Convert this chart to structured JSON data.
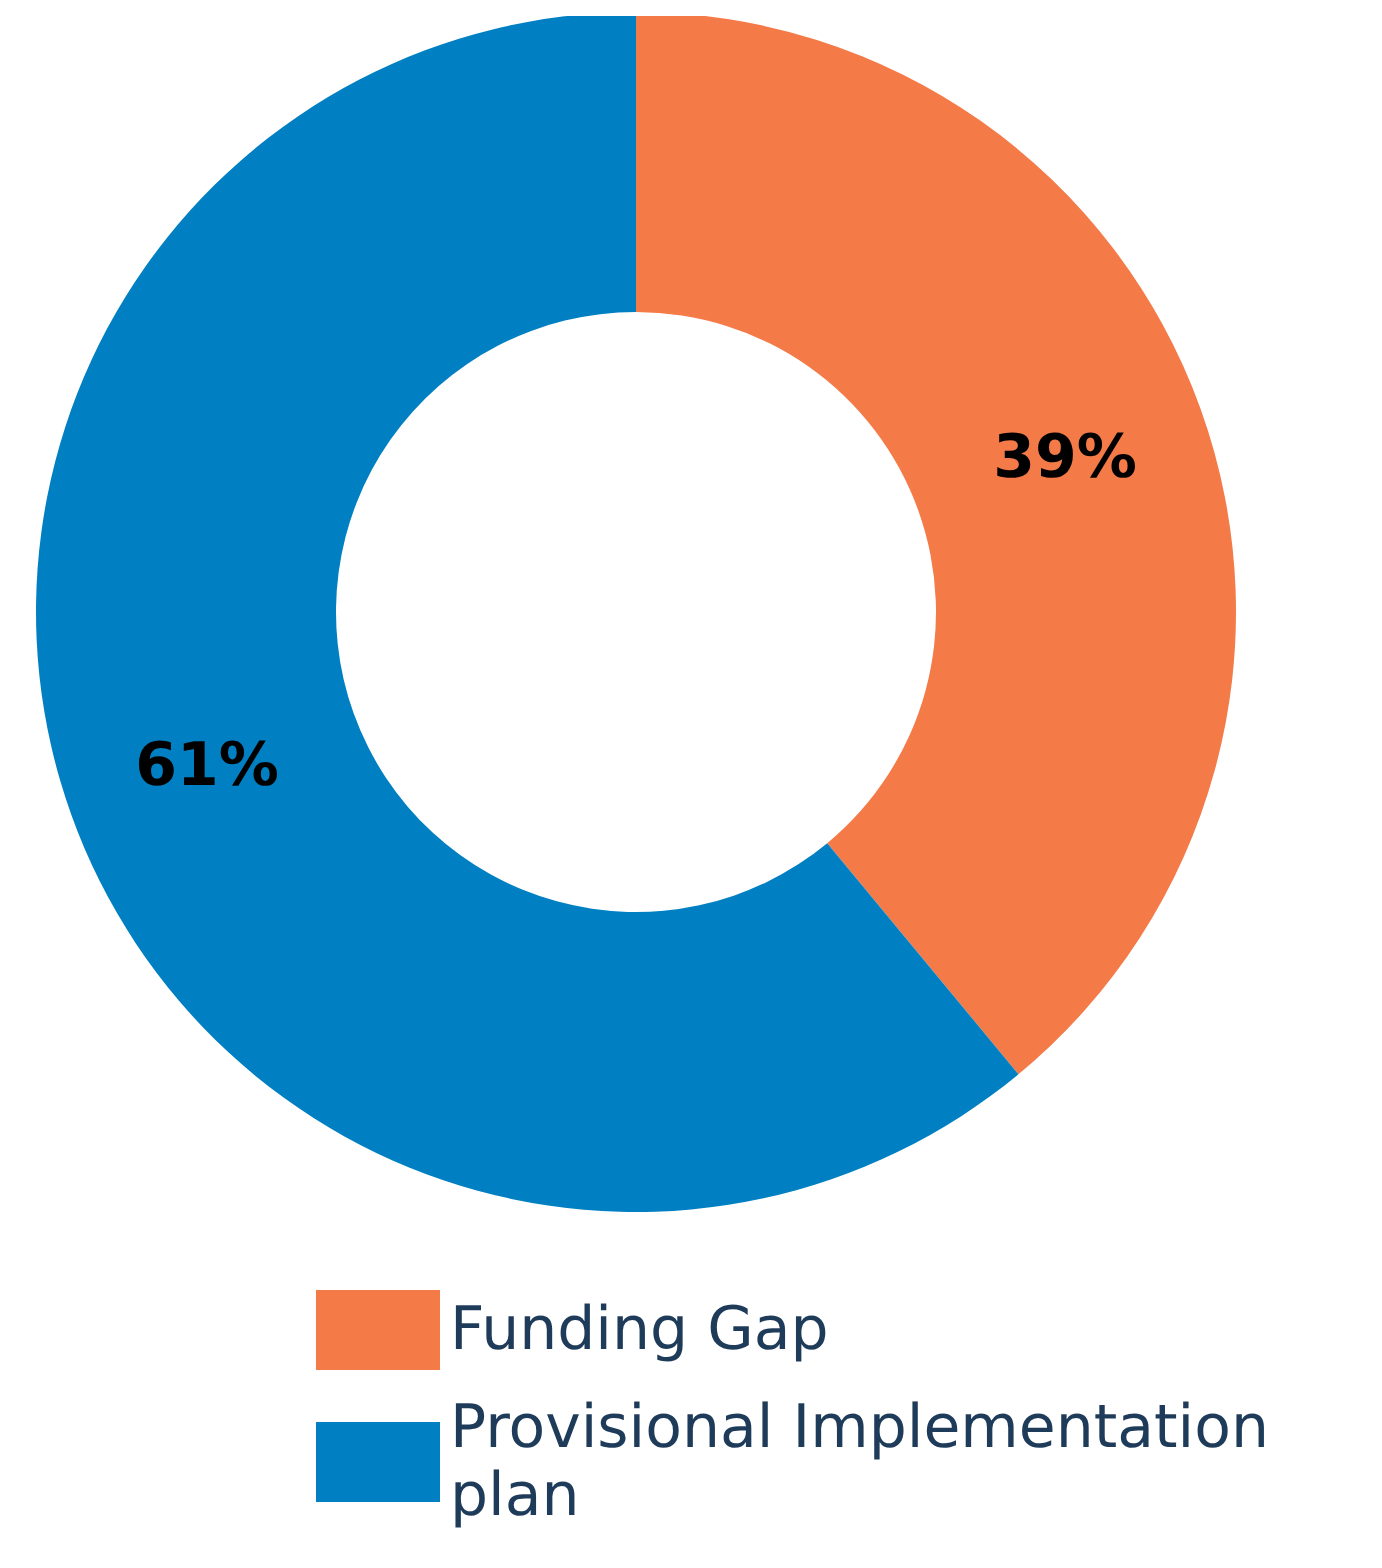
{
  "chart_data": {
    "type": "donut",
    "categories": [
      "Funding Gap",
      "Provisional Implementation plan"
    ],
    "values": [
      39,
      61
    ],
    "colors": [
      "#f47a48",
      "#0080c3"
    ],
    "value_labels": [
      "39%",
      "61%"
    ],
    "legend": "bottom"
  }
}
